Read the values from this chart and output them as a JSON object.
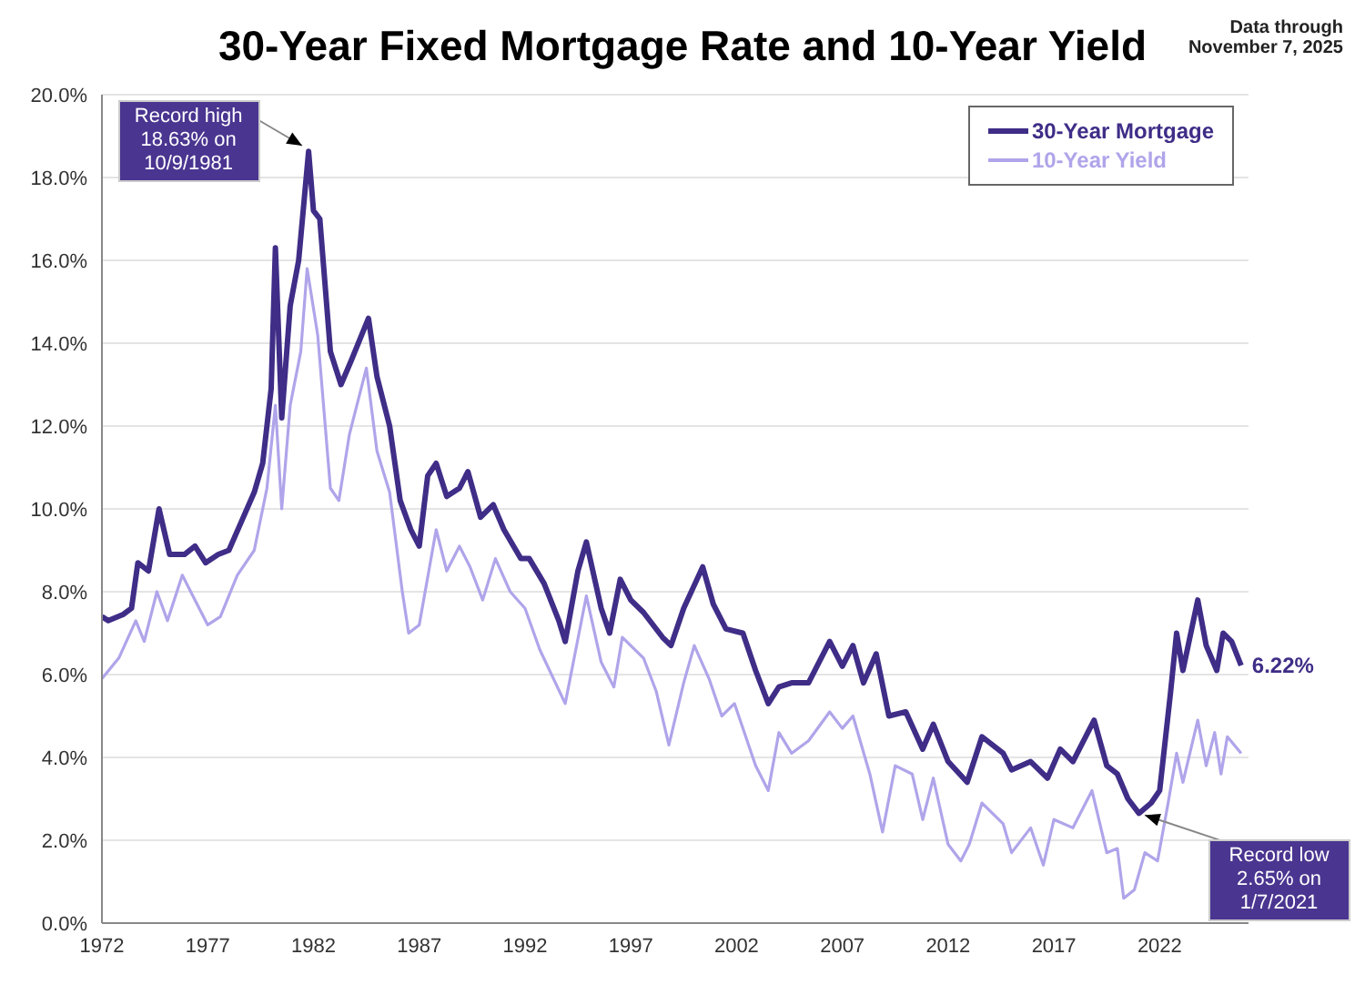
{
  "chart_data": {
    "type": "line",
    "title": "30-Year Fixed Mortgage Rate and 10-Year Yield",
    "annotations": [
      "Data through November 7, 2025",
      {
        "text": "Record high 18.63% on 10/9/1981",
        "x": 1981.77,
        "y": 18.63
      },
      {
        "text": "Record low 2.65% on 1/7/2021",
        "x": 2021.02,
        "y": 2.65
      }
    ],
    "xlim": [
      1972,
      2026.2
    ],
    "xticks": [
      1972,
      1977,
      1982,
      1987,
      1992,
      1997,
      2002,
      2007,
      2012,
      2017,
      2022
    ],
    "ylim": [
      0,
      20
    ],
    "yticks": [
      {
        "value": 0,
        "label": "0.0%"
      },
      {
        "value": 2,
        "label": "2.0%"
      },
      {
        "value": 4,
        "label": "4.0%"
      },
      {
        "value": 6,
        "label": "6.0%"
      },
      {
        "value": 8,
        "label": "8.0%"
      },
      {
        "value": 10,
        "label": "10.0%"
      },
      {
        "value": 12,
        "label": "12.0%"
      },
      {
        "value": 14,
        "label": "14.0%"
      },
      {
        "value": 16,
        "label": "16.0%"
      },
      {
        "value": 18,
        "label": "18.0%"
      },
      {
        "value": 20,
        "label": "20.0%"
      }
    ],
    "grid": "y",
    "legend": "top right",
    "marker": "none",
    "line_style": "solid",
    "series": [
      {
        "name": "30-Year Mortgage",
        "color": "#3f2d87",
        "x": [
          1972,
          1972.3,
          1973,
          1973.4,
          1973.7,
          1974.2,
          1974.7,
          1975.2,
          1975.9,
          1976.4,
          1976.9,
          1977.5,
          1978,
          1978.6,
          1979.2,
          1979.6,
          1980,
          1980.2,
          1980.5,
          1980.9,
          1981.3,
          1981.77,
          1982,
          1982.3,
          1982.8,
          1983.3,
          1983.8,
          1984.6,
          1985,
          1985.6,
          1986.1,
          1986.6,
          1987,
          1987.4,
          1987.8,
          1988.3,
          1988.9,
          1989.3,
          1989.9,
          1990.5,
          1991,
          1991.8,
          1992.2,
          1992.9,
          1993.6,
          1993.9,
          1994.5,
          1994.9,
          1995.6,
          1996,
          1996.5,
          1997,
          1997.6,
          1998.5,
          1998.9,
          1999.5,
          2000.4,
          2000.9,
          2001.5,
          2002.3,
          2002.9,
          2003.5,
          2004,
          2004.6,
          2005.4,
          2006.4,
          2007,
          2007.5,
          2008,
          2008.6,
          2009.2,
          2010,
          2010.8,
          2011.3,
          2012,
          2012.9,
          2013.6,
          2014.6,
          2015,
          2015.9,
          2016.7,
          2017.3,
          2017.9,
          2018.9,
          2019.5,
          2020,
          2020.5,
          2021.02,
          2021.6,
          2022,
          2022.5,
          2022.8,
          2023.1,
          2023.8,
          2024.2,
          2024.7,
          2025,
          2025.4,
          2025.85
        ],
        "values": [
          7.4,
          7.3,
          7.45,
          7.6,
          8.7,
          8.5,
          10,
          8.9,
          8.9,
          9.1,
          8.7,
          8.9,
          9,
          9.7,
          10.4,
          11.1,
          12.9,
          16.3,
          12.2,
          14.9,
          16,
          18.63,
          17.2,
          17,
          13.8,
          13,
          13.6,
          14.6,
          13.2,
          12,
          10.2,
          9.5,
          9.1,
          10.8,
          11.1,
          10.3,
          10.5,
          10.9,
          9.8,
          10.1,
          9.5,
          8.8,
          8.8,
          8.2,
          7.3,
          6.8,
          8.5,
          9.2,
          7.6,
          7,
          8.3,
          7.8,
          7.5,
          6.9,
          6.7,
          7.6,
          8.6,
          7.7,
          7.1,
          7,
          6.1,
          5.3,
          5.7,
          5.8,
          5.8,
          6.8,
          6.2,
          6.7,
          5.8,
          6.5,
          5,
          5.1,
          4.2,
          4.8,
          3.9,
          3.4,
          4.5,
          4.1,
          3.7,
          3.9,
          3.5,
          4.2,
          3.9,
          4.9,
          3.8,
          3.6,
          3,
          2.65,
          2.9,
          3.2,
          5.5,
          7,
          6.1,
          7.8,
          6.7,
          6.1,
          7,
          6.8,
          6.22
        ],
        "value_labels": [
          null,
          null,
          null,
          null,
          null,
          null,
          null,
          null,
          null,
          null,
          null,
          null,
          null,
          null,
          null,
          null,
          null,
          null,
          null,
          null,
          null,
          null,
          null,
          null,
          null,
          null,
          null,
          null,
          null,
          null,
          null,
          null,
          null,
          null,
          null,
          null,
          null,
          null,
          null,
          null,
          null,
          null,
          null,
          null,
          null,
          null,
          null,
          null,
          null,
          null,
          null,
          null,
          null,
          null,
          null,
          null,
          null,
          null,
          null,
          null,
          null,
          null,
          null,
          null,
          null,
          null,
          null,
          null,
          null,
          null,
          null,
          null,
          null,
          null,
          null,
          null,
          null,
          null,
          null,
          null,
          null,
          null,
          null,
          null,
          null,
          null,
          null,
          null,
          null,
          null,
          null,
          null,
          null,
          null,
          null,
          null,
          null,
          null,
          "6.22%"
        ]
      },
      {
        "name": "10-Year Yield",
        "color": "#b0a4ea",
        "x": [
          1972,
          1972.8,
          1973.6,
          1974,
          1974.6,
          1975.1,
          1975.8,
          1976.5,
          1977,
          1977.6,
          1978.4,
          1979.2,
          1979.8,
          1980.2,
          1980.5,
          1980.9,
          1981.4,
          1981.7,
          1982.2,
          1982.8,
          1983.2,
          1983.7,
          1984.5,
          1985,
          1985.6,
          1986.2,
          1986.5,
          1987,
          1987.8,
          1988.3,
          1988.9,
          1989.4,
          1990,
          1990.6,
          1991.3,
          1992,
          1992.7,
          1993.9,
          1994.9,
          1995.6,
          1996.2,
          1996.6,
          1997.6,
          1998.2,
          1998.8,
          1999.5,
          2000,
          2000.7,
          2001.3,
          2001.9,
          2002.9,
          2003.5,
          2004,
          2004.6,
          2005.4,
          2006.4,
          2007,
          2007.5,
          2008.3,
          2008.9,
          2009.5,
          2010.3,
          2010.8,
          2011.3,
          2012,
          2012.6,
          2013,
          2013.6,
          2014.6,
          2015,
          2015.9,
          2016.5,
          2017,
          2017.9,
          2018.8,
          2019.5,
          2020,
          2020.3,
          2020.8,
          2021.3,
          2021.9,
          2022.4,
          2022.8,
          2023.1,
          2023.8,
          2024.2,
          2024.6,
          2024.9,
          2025.2,
          2025.85
        ],
        "values": [
          5.9,
          6.4,
          7.3,
          6.8,
          8,
          7.3,
          8.4,
          7.7,
          7.2,
          7.4,
          8.4,
          9,
          10.5,
          12.5,
          10,
          12.5,
          13.8,
          15.8,
          14.2,
          10.5,
          10.2,
          11.8,
          13.4,
          11.4,
          10.4,
          8,
          7,
          7.2,
          9.5,
          8.5,
          9.1,
          8.6,
          7.8,
          8.8,
          8,
          7.6,
          6.6,
          5.3,
          7.9,
          6.3,
          5.7,
          6.9,
          6.4,
          5.6,
          4.3,
          5.8,
          6.7,
          5.9,
          5,
          5.3,
          3.8,
          3.2,
          4.6,
          4.1,
          4.4,
          5.1,
          4.7,
          5,
          3.6,
          2.2,
          3.8,
          3.6,
          2.5,
          3.5,
          1.9,
          1.5,
          1.9,
          2.9,
          2.4,
          1.7,
          2.3,
          1.4,
          2.5,
          2.3,
          3.2,
          1.7,
          1.8,
          0.6,
          0.8,
          1.7,
          1.5,
          2.9,
          4.1,
          3.4,
          4.9,
          3.8,
          4.6,
          3.6,
          4.5,
          4.1
        ]
      }
    ]
  }
}
